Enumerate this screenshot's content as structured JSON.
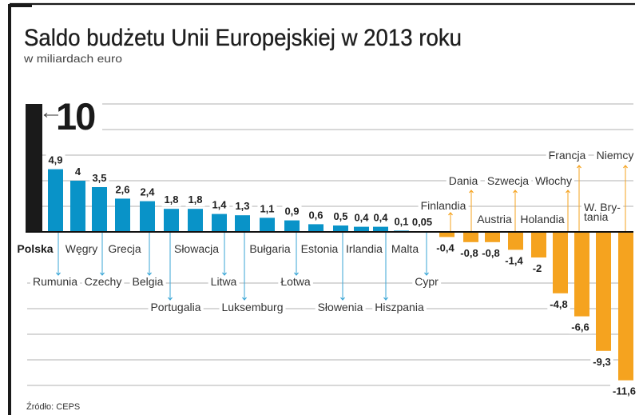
{
  "header": {
    "title": "Saldo budżetu Unii Europejskiej w 2013 roku",
    "subtitle": "w miliardach euro"
  },
  "footer": {
    "source": "Źródło: CEPS"
  },
  "colors": {
    "positive": "#0993c8",
    "negative": "#f5a31f",
    "highlight": "#1a1a1a",
    "grid": "#b2b2b2",
    "baseline": "#111111",
    "positive_arrow": "#3aa6d6",
    "negative_arrow": "#f5a31f"
  },
  "chart_data": {
    "type": "bar",
    "title": "Saldo budżetu Unii Europejskiej w 2013 roku",
    "subtitle": "w miliardach euro",
    "xlabel": "",
    "ylabel": "",
    "source": "Źródło: CEPS",
    "highlight": {
      "category": "Polska",
      "value": 10,
      "value_label": "10"
    },
    "categories": [
      "Rumunia",
      "Węgry",
      "Czechy",
      "Grecja",
      "Belgia",
      "Portugalia",
      "Słowacja",
      "Litwa",
      "Luksemburg",
      "Bułgaria",
      "Łotwa",
      "Estonia",
      "Słowenia",
      "Irlandia",
      "Hiszpania",
      "Malta",
      "Cypr",
      "Finlandia",
      "Dania",
      "Austria",
      "Szwecja",
      "Holandia",
      "Włochy",
      "Francja",
      "W. Brytania",
      "Niemcy"
    ],
    "values": [
      4.9,
      4,
      3.5,
      2.6,
      2.4,
      1.8,
      1.8,
      1.4,
      1.3,
      1.1,
      0.9,
      0.6,
      0.5,
      0.4,
      0.4,
      0.1,
      0.05,
      -0.4,
      -0.8,
      -0.8,
      -1.4,
      -2,
      -4.8,
      -6.6,
      -9.3,
      -11.6
    ],
    "value_labels": [
      "4,9",
      "4",
      "3,5",
      "2,6",
      "2,4",
      "1,8",
      "1,8",
      "1,4",
      "1,3",
      "1,1",
      "0,9",
      "0,6",
      "0,5",
      "0,4",
      "0,4",
      "0,1",
      "0,05",
      "-0,4",
      "-0,8",
      "-0,8",
      "-1,4",
      "-2",
      "-4,8",
      "-6,6",
      "-9,3",
      "-11,6"
    ],
    "wrapped_labels": {
      "W. Brytania": [
        "W. Bry-",
        "tania"
      ]
    },
    "ylim": [
      -12,
      10
    ],
    "grid": true,
    "grid_step": 2,
    "legend": "none"
  }
}
